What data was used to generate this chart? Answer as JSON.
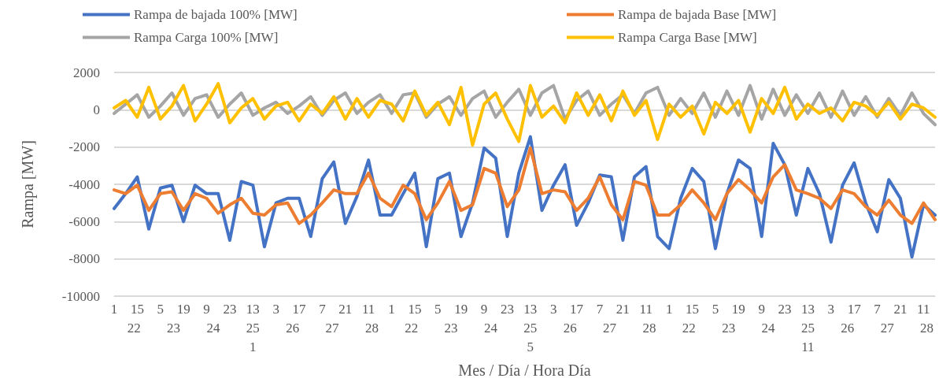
{
  "chart_data": {
    "type": "line",
    "xlabel": "Mes / Día / Hora Día",
    "ylabel": "Rampa [MW]",
    "categories": [
      "1",
      null,
      "15",
      null,
      "5",
      null,
      "19",
      null,
      "9",
      null,
      "23",
      null,
      "13",
      null,
      "3",
      null,
      "17",
      null,
      "7",
      null,
      "21",
      null,
      "11",
      null,
      "1",
      null,
      "15",
      null,
      "5",
      null,
      "19",
      null,
      "9",
      null,
      "23",
      null,
      "13",
      null,
      "3",
      null,
      "17",
      null,
      "7",
      null,
      "21",
      null,
      "11",
      null,
      "1",
      null,
      "15",
      null,
      "5",
      null,
      "19",
      null,
      "9",
      null,
      "23",
      null,
      "13",
      null,
      "3",
      null,
      "17",
      null,
      "7",
      null,
      "21",
      null,
      "11",
      null
    ],
    "series": [
      {
        "name": "Rampa de bajada 100% [MW]",
        "color": "#4472c4",
        "values": [
          -5300,
          -4500,
          -3600,
          -6400,
          -4200,
          -4050,
          -6000,
          -4050,
          -4500,
          -4500,
          -7000,
          -3850,
          -4050,
          -7350,
          -5000,
          -4750,
          -4750,
          -6800,
          -3700,
          -2800,
          -6100,
          -4650,
          -2700,
          -5650,
          -5650,
          -4500,
          -3400,
          -7350,
          -3700,
          -3400,
          -6800,
          -5000,
          -2050,
          -2600,
          -6800,
          -3400,
          -1450,
          -5400,
          -4050,
          -2950,
          -6200,
          -5000,
          -3500,
          -3600,
          -7000,
          -3600,
          -3050,
          -6800,
          -7450,
          -4750,
          -3150,
          -3850,
          -7450,
          -4500,
          -2700,
          -3150,
          -6800,
          -1800,
          -2950,
          -5650,
          -3150,
          -4500,
          -7100,
          -4050,
          -2850,
          -5000,
          -6550,
          -3750,
          -4750,
          -7900,
          -5100,
          -5650
        ]
      },
      {
        "name": "Rampa de bajada Base [MW]",
        "color": "#ed7d31",
        "values": [
          -4300,
          -4500,
          -4050,
          -5400,
          -4500,
          -4400,
          -5400,
          -4500,
          -4750,
          -5550,
          -5100,
          -4750,
          -5550,
          -5650,
          -5100,
          -5000,
          -6100,
          -5650,
          -5000,
          -4300,
          -4500,
          -4500,
          -3400,
          -4750,
          -5200,
          -4050,
          -4500,
          -5900,
          -5000,
          -3850,
          -5400,
          -5100,
          -3150,
          -3400,
          -5200,
          -4300,
          -2050,
          -4500,
          -4300,
          -4400,
          -5400,
          -4750,
          -3600,
          -5100,
          -5900,
          -3850,
          -4050,
          -5650,
          -5650,
          -5100,
          -4300,
          -5000,
          -5900,
          -4500,
          -3750,
          -4300,
          -5000,
          -3600,
          -2950,
          -4300,
          -4500,
          -4750,
          -5300,
          -4300,
          -4500,
          -5200,
          -5650,
          -4850,
          -5650,
          -6100,
          -5000,
          -5900
        ]
      },
      {
        "name": "Rampa Carga 100% [MW]",
        "color": "#a5a5a5",
        "values": [
          -200,
          300,
          800,
          -400,
          200,
          900,
          -300,
          600,
          800,
          -400,
          300,
          900,
          -300,
          100,
          400,
          -200,
          200,
          700,
          -300,
          500,
          900,
          -200,
          400,
          800,
          -200,
          800,
          900,
          -400,
          300,
          700,
          -300,
          600,
          1000,
          -400,
          400,
          1100,
          -300,
          900,
          1300,
          -500,
          500,
          1000,
          -300,
          300,
          800,
          -200,
          900,
          1200,
          -300,
          600,
          -200,
          900,
          -400,
          1000,
          -300,
          1300,
          -500,
          1100,
          -300,
          800,
          -200,
          900,
          -400,
          1000,
          -300,
          700,
          -400,
          600,
          -300,
          900,
          -200,
          -800
        ]
      },
      {
        "name": "Rampa Carga Base [MW]",
        "color": "#ffc000",
        "values": [
          100,
          500,
          -400,
          1200,
          -500,
          200,
          1300,
          -600,
          300,
          1400,
          -700,
          100,
          600,
          -500,
          200,
          400,
          -600,
          300,
          -200,
          700,
          -500,
          600,
          -400,
          500,
          300,
          -600,
          1000,
          -300,
          400,
          -800,
          1200,
          -1900,
          300,
          900,
          -500,
          -1700,
          1300,
          -400,
          200,
          -700,
          900,
          -300,
          800,
          -600,
          1000,
          -300,
          500,
          -1600,
          300,
          -400,
          200,
          -1300,
          400,
          -200,
          500,
          -1200,
          600,
          -200,
          1200,
          -500,
          300,
          -200,
          100,
          -600,
          400,
          200,
          -300,
          400,
          -500,
          300,
          100,
          -400
        ]
      }
    ],
    "annotations": [
      "22",
      "23",
      "24",
      "25",
      "26",
      "27",
      "28",
      "22",
      "23",
      "24",
      "25",
      "26",
      "27",
      "28",
      "22",
      "23",
      "24",
      "25",
      "26",
      "27",
      "28",
      "1",
      "5",
      "11"
    ],
    "ylim": [
      -10000,
      2000
    ],
    "yticks": [
      -10000,
      -8000,
      -6000,
      -4000,
      -2000,
      0,
      2000
    ],
    "grid": "y",
    "legend": "top",
    "marker": "none",
    "line_style": "solid"
  }
}
